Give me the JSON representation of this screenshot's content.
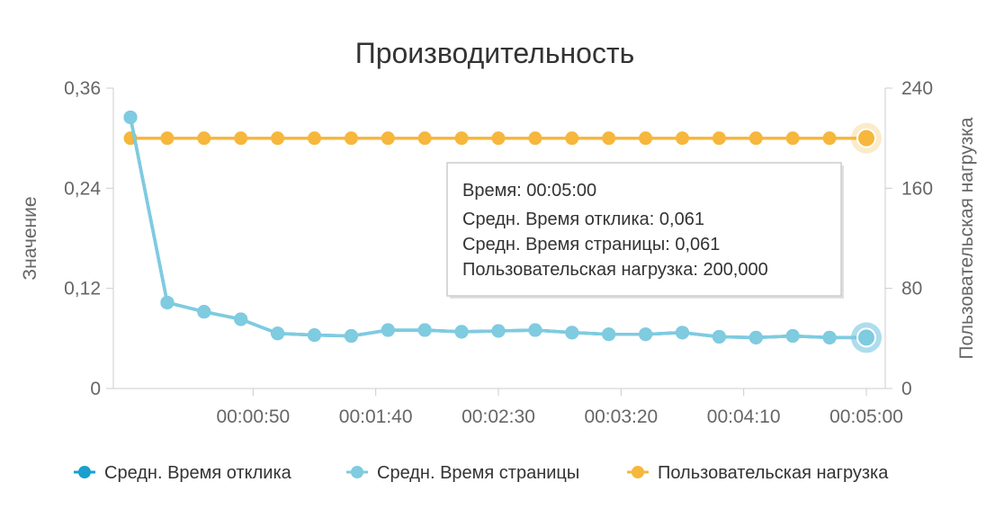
{
  "chart_data": {
    "type": "line",
    "title": "Производительность",
    "ylabel": "Значение",
    "y2label": "Пользовательская нагрузка",
    "ylim": [
      0,
      0.36
    ],
    "y2lim": [
      0,
      240
    ],
    "yticks": [
      "0",
      "0,12",
      "0,24",
      "0,36"
    ],
    "y2ticks": [
      "0",
      "80",
      "160",
      "240"
    ],
    "xlim_seconds": [
      0,
      300
    ],
    "xticks": [
      "00:00:50",
      "00:01:40",
      "00:02:30",
      "00:03:20",
      "00:04:10",
      "00:05:00"
    ],
    "xtick_seconds": [
      50,
      100,
      150,
      200,
      250,
      300
    ],
    "x_seconds": [
      0,
      15,
      30,
      45,
      60,
      75,
      90,
      105,
      120,
      135,
      150,
      165,
      180,
      195,
      210,
      225,
      240,
      255,
      270,
      285,
      300
    ],
    "series": [
      {
        "name": "Средн. Время отклика",
        "axis": "left",
        "color": "#1a9fcf",
        "values": [
          0.325,
          0.103,
          0.092,
          0.083,
          0.066,
          0.064,
          0.063,
          0.07,
          0.07,
          0.068,
          0.069,
          0.07,
          0.067,
          0.065,
          0.065,
          0.067,
          0.062,
          0.061,
          0.063,
          0.061,
          0.061
        ]
      },
      {
        "name": "Средн. Время страницы",
        "axis": "left",
        "color": "#7fcbe0",
        "values": [
          0.325,
          0.103,
          0.092,
          0.083,
          0.066,
          0.064,
          0.063,
          0.07,
          0.07,
          0.068,
          0.069,
          0.07,
          0.067,
          0.065,
          0.065,
          0.067,
          0.062,
          0.061,
          0.063,
          0.061,
          0.061
        ]
      },
      {
        "name": "Пользовательская нагрузка",
        "axis": "right",
        "color": "#f6b73c",
        "values": [
          200,
          200,
          200,
          200,
          200,
          200,
          200,
          200,
          200,
          200,
          200,
          200,
          200,
          200,
          200,
          200,
          200,
          200,
          200,
          200,
          200
        ]
      }
    ],
    "legend_position": "bottom",
    "grid": false,
    "tooltip": {
      "time": "Время: 00:05:00",
      "lines": [
        "Средн. Время отклика: 0,061",
        "Средн. Время страницы: 0,061",
        "Пользовательская нагрузка: 200,000"
      ]
    }
  }
}
